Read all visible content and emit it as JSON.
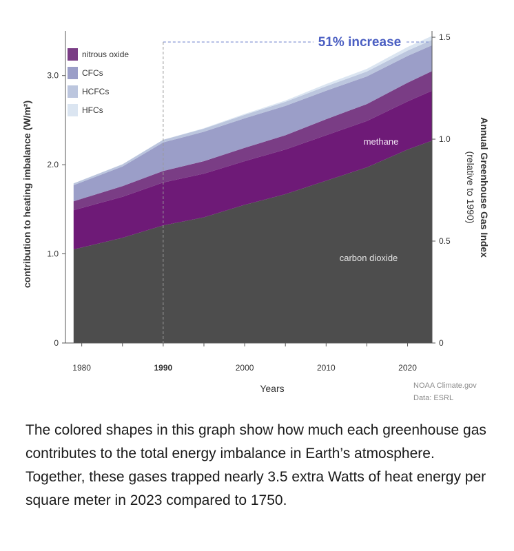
{
  "chart_data": {
    "type": "area",
    "stacked": true,
    "x": [
      1979,
      1985,
      1990,
      1995,
      2000,
      2005,
      2010,
      2015,
      2020,
      2023
    ],
    "series": [
      {
        "name": "carbon dioxide",
        "color": "#4d4d4d",
        "values": [
          1.05,
          1.18,
          1.32,
          1.41,
          1.55,
          1.67,
          1.82,
          1.97,
          2.17,
          2.27
        ]
      },
      {
        "name": "methane",
        "color": "#6e1a77",
        "values": [
          0.44,
          0.46,
          0.48,
          0.49,
          0.49,
          0.5,
          0.51,
          0.52,
          0.54,
          0.56
        ]
      },
      {
        "name": "nitrous oxide",
        "color": "#7a3d85",
        "values": [
          0.1,
          0.12,
          0.13,
          0.14,
          0.15,
          0.16,
          0.18,
          0.19,
          0.21,
          0.22
        ]
      },
      {
        "name": "CFCs",
        "color": "#9b9ec8",
        "values": [
          0.18,
          0.22,
          0.32,
          0.33,
          0.33,
          0.33,
          0.32,
          0.31,
          0.3,
          0.29
        ]
      },
      {
        "name": "HCFCs",
        "color": "#bcc6de",
        "values": [
          0.02,
          0.025,
          0.03,
          0.035,
          0.04,
          0.045,
          0.05,
          0.055,
          0.06,
          0.06
        ]
      },
      {
        "name": "HFCs",
        "color": "#dbe5f1",
        "values": [
          0.0,
          0.0,
          0.0,
          0.005,
          0.01,
          0.015,
          0.025,
          0.03,
          0.04,
          0.045
        ]
      }
    ],
    "xlabel": "Years",
    "ylabel": "contribution to heating imbalance (W/m²)",
    "ylim": [
      0,
      3.5
    ],
    "xlim": [
      1978,
      2023
    ],
    "x_ticks": [
      "1980",
      "1990",
      "2000",
      "2010",
      "2020"
    ],
    "y_ticks": [
      "0",
      "1.0",
      "2.0",
      "3.0"
    ],
    "y2label": "Annual Greenhouse Gas Index",
    "y2sublabel": "(relative to 1990)",
    "y2_ticks": [
      "0",
      "0.5",
      "1.0",
      "1.5"
    ],
    "y2lim": [
      0,
      1.5
    ],
    "legend": [
      "nitrous oxide",
      "CFCs",
      "HCFCs",
      "HFCs"
    ],
    "legend_position": "top-left",
    "annotations": {
      "increase": "51% increase",
      "reference_year": 1990,
      "methane": "methane",
      "carbon_dioxide": "carbon dioxide"
    },
    "credit": [
      "NOAA Climate.gov",
      "Data: ESRL"
    ]
  },
  "colors": {
    "accent": "#4a5ec2",
    "axis": "#555555"
  },
  "caption": "The colored shapes in this graph show how much each greenhouse gas contributes to the total energy imbalance in Earth’s atmosphere. Together, these gases trapped nearly 3.5 extra Watts of heat energy per square meter in 2023 compared to 1750."
}
